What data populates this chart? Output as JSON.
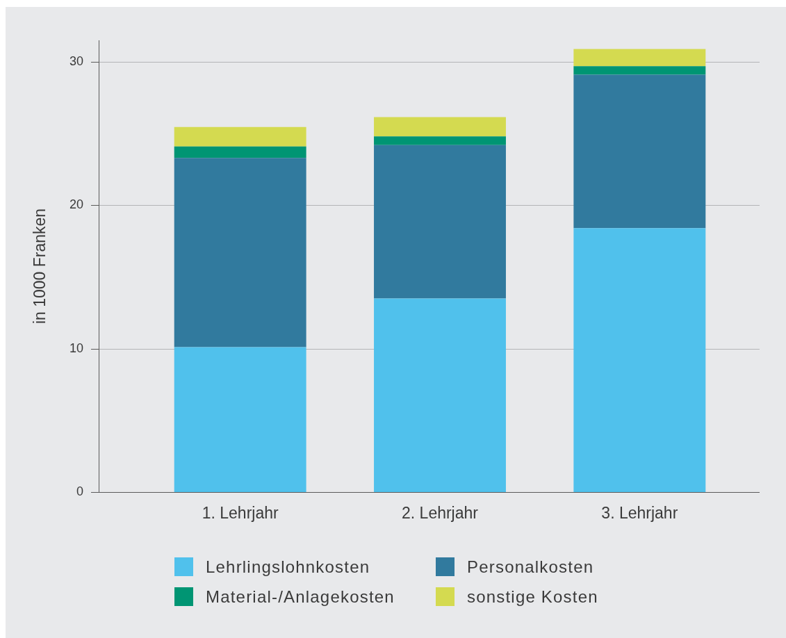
{
  "chart_data": {
    "type": "bar",
    "stacked": true,
    "ylabel": "in 1000 Franken",
    "categories": [
      "1. Lehrjahr",
      "2. Lehrjahr",
      "3. Lehrjahr"
    ],
    "series": [
      {
        "name": "Lehrlingslohnkosten",
        "color": "#50c1ec",
        "values": [
          10.1,
          13.5,
          18.4
        ]
      },
      {
        "name": "Personalkosten",
        "color": "#317a9e",
        "values": [
          13.2,
          10.7,
          10.7
        ]
      },
      {
        "name": "Material-/Anlagekosten",
        "color": "#009573",
        "values": [
          0.8,
          0.6,
          0.6
        ]
      },
      {
        "name": "sonstige Kosten",
        "color": "#d4da50",
        "values": [
          1.35,
          1.35,
          1.2
        ]
      }
    ],
    "ylim": [
      0,
      31.5
    ],
    "yticks": [
      0,
      10,
      20,
      30
    ],
    "grid": "y",
    "legend": "bottom"
  }
}
